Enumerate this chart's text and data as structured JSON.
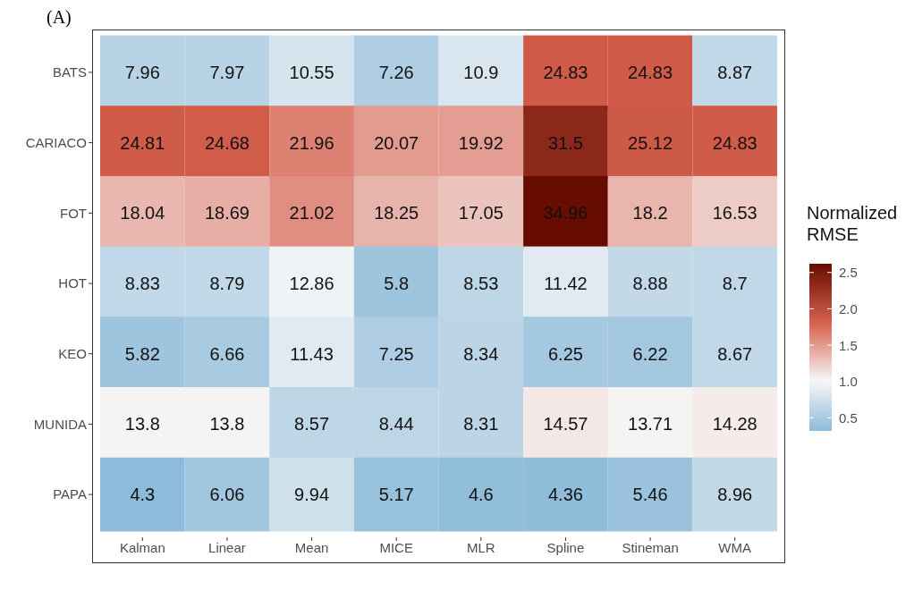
{
  "chart_data": {
    "type": "heatmap",
    "clabel": "Normalized RMSE",
    "categories": [
      "Kalman",
      "Linear",
      "Mean",
      "MICE",
      "MLR",
      "Spline",
      "Stineman",
      "WMA"
    ],
    "y_categories": [
      "BATS",
      "CARIACO",
      "FOT",
      "HOT",
      "KEO",
      "MUNIDA",
      "PAPA"
    ],
    "cells": [
      [
        0.6,
        0.6,
        0.79,
        0.54,
        0.82,
        1.86,
        1.86,
        0.66
      ],
      [
        1.86,
        1.85,
        1.64,
        1.5,
        1.49,
        2.36,
        1.88,
        1.86
      ],
      [
        1.35,
        1.4,
        1.57,
        1.37,
        1.28,
        2.62,
        1.36,
        1.24
      ],
      [
        0.66,
        0.66,
        0.96,
        0.43,
        0.64,
        0.86,
        0.67,
        0.65
      ],
      [
        0.44,
        0.5,
        0.86,
        0.54,
        0.62,
        0.47,
        0.47,
        0.65
      ],
      [
        1.03,
        1.03,
        0.64,
        0.63,
        0.62,
        1.09,
        1.03,
        1.07
      ],
      [
        0.32,
        0.45,
        0.74,
        0.39,
        0.34,
        0.33,
        0.41,
        0.67
      ]
    ],
    "clim": [
      0.32,
      2.62
    ],
    "cticks": [
      0.5,
      {
        "value": 1,
        "label": "1.0"
      },
      1.5,
      {
        "value": 2,
        "label": "2.0"
      },
      2.5
    ],
    "annotations": [
      "(A)",
      "7.96",
      "7.97",
      "10.55",
      "7.26",
      "10.9",
      "24.83",
      "24.83",
      "8.87",
      "24.81",
      "24.68",
      "21.96",
      "20.07",
      "19.92",
      "31.5",
      "25.12",
      "24.83",
      "18.04",
      "18.69",
      "21.02",
      "18.25",
      "17.05",
      "34.96",
      "18.2",
      "16.53",
      "8.83",
      "8.79",
      "12.86",
      "5.8",
      "8.53",
      "11.42",
      "8.88",
      "8.7",
      "5.82",
      "6.66",
      "11.43",
      "7.25",
      "8.34",
      "6.25",
      "6.22",
      "8.67",
      "13.8",
      "13.8",
      "8.57",
      "8.44",
      "8.31",
      "14.57",
      "13.71",
      "14.28",
      "4.3",
      "6.06",
      "9.94",
      "5.17",
      "4.6",
      "4.36",
      "5.46",
      "8.96"
    ]
  }
}
